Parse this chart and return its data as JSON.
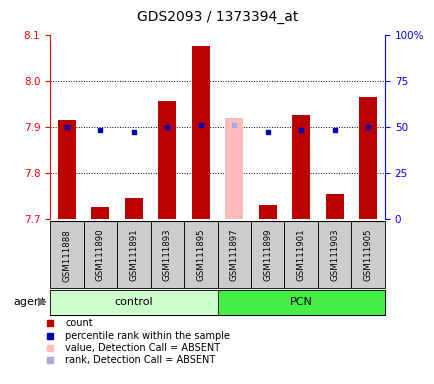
{
  "title": "GDS2093 / 1373394_at",
  "samples": [
    "GSM111888",
    "GSM111890",
    "GSM111891",
    "GSM111893",
    "GSM111895",
    "GSM111897",
    "GSM111899",
    "GSM111901",
    "GSM111903",
    "GSM111905"
  ],
  "red_values": [
    7.915,
    7.725,
    7.745,
    7.955,
    8.075,
    null,
    7.73,
    7.925,
    7.755,
    7.965
  ],
  "pink_values": [
    null,
    null,
    null,
    null,
    null,
    7.92,
    null,
    null,
    null,
    null
  ],
  "blue_dot_pct": [
    50,
    48,
    47,
    50,
    51,
    null,
    47,
    48,
    48,
    50
  ],
  "lightblue_dot_pct": [
    null,
    null,
    null,
    null,
    null,
    51,
    null,
    null,
    null,
    null
  ],
  "ylim_left": [
    7.7,
    8.1
  ],
  "ylim_right": [
    0,
    100
  ],
  "yticks_left": [
    7.7,
    7.8,
    7.9,
    8.0,
    8.1
  ],
  "yticks_right": [
    0,
    25,
    50,
    75,
    100
  ],
  "ytick_labels_right": [
    "0",
    "25",
    "50",
    "75",
    "100%"
  ],
  "bar_color_red": "#bb0000",
  "bar_color_pink": "#ffbbbb",
  "dot_color_blue": "#0000bb",
  "dot_color_lightblue": "#aaaadd",
  "group_defs": [
    {
      "label": "control",
      "start": 0,
      "end": 4,
      "color": "#ccffcc"
    },
    {
      "label": "PCN",
      "start": 5,
      "end": 9,
      "color": "#44ee44"
    }
  ],
  "agent_label": "agent"
}
